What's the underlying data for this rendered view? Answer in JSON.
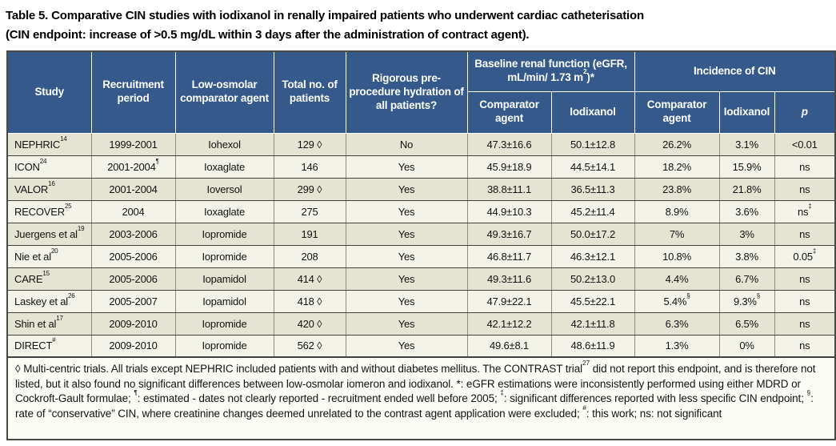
{
  "title": {
    "line1": "Table 5. Comparative CIN studies with iodixanol in renally impaired patients who underwent cardiac catheterisation",
    "line2": "(CIN endpoint: increase of >0.5 mg/dL within 3 days after the administration of contract agent)."
  },
  "colors": {
    "header_blue": "#35598b",
    "row_beige": "#e5e3d2",
    "row_cream": "#f4f3ea",
    "footnote_bg": "#fcfcf6",
    "grid_dark": "#42403c",
    "grid_gray": "#8d8d84"
  },
  "table": {
    "header": {
      "study": "Study",
      "recruitment": "Recruitment period",
      "comparator": "Low-osmolar comparator agent",
      "total": "Total no. of patients",
      "hydration": "Rigorous pre-procedure hydration of all patients?",
      "baseline_group": "Baseline renal function (eGFR, mL/min/ 1.73 m^{2})*",
      "cin_group": "Incidence of CIN",
      "baseline_comparator": "Comparator agent",
      "baseline_iodixanol": "Iodixanol",
      "cin_comparator": "Comparator agent",
      "cin_iodixanol": "Iodixanol",
      "p": "p"
    },
    "rows": [
      [
        "NEPHRIC^{14}",
        "1999-2001",
        "Iohexol",
        "129 ◊",
        "No",
        "47.3±16.6",
        "50.1±12.8",
        "26.2%",
        "3.1%",
        "<0.01"
      ],
      [
        "ICON^{24}",
        "2001-2004^{¶}",
        "Ioxaglate",
        "146",
        "Yes",
        "45.9±18.9",
        "44.5±14.1",
        "18.2%",
        "15.9%",
        "ns"
      ],
      [
        "VALOR^{16}",
        "2001-2004",
        "Ioversol",
        "299 ◊",
        "Yes",
        "38.8±11.1",
        "36.5±11.3",
        "23.8%",
        "21.8%",
        "ns"
      ],
      [
        "RECOVER^{25}",
        "2004",
        "Ioxaglate",
        "275",
        "Yes",
        "44.9±10.3",
        "45.2±11.4",
        "8.9%",
        "3.6%",
        "ns^{‡}"
      ],
      [
        "Juergens et al^{19}",
        "2003-2006",
        "Iopromide",
        "191",
        "Yes",
        "49.3±16.7",
        "50.0±17.2",
        "7%",
        "3%",
        "ns"
      ],
      [
        "Nie et al^{20}",
        "2005-2006",
        "Iopromide",
        "208",
        "Yes",
        "46.8±11.7",
        "46.3±12.1",
        "10.8%",
        "3.8%",
        "0.05^{‡}"
      ],
      [
        "CARE^{15}",
        "2005-2006",
        "Iopamidol",
        "414 ◊",
        "Yes",
        "49.3±11.6",
        "50.2±13.0",
        "4.4%",
        "6.7%",
        "ns"
      ],
      [
        "Laskey et al^{26}",
        "2005-2007",
        "Iopamidol",
        "418 ◊",
        "Yes",
        "47.9±22.1",
        "45.5±22.1",
        "5.4%^{§}",
        "9.3%^{§}",
        "ns"
      ],
      [
        "Shin et al^{17}",
        "2009-2010",
        "Iopromide",
        "420 ◊",
        "Yes",
        "42.1±12.2",
        "42.1±11.8",
        "6.3%",
        "6.5%",
        "ns"
      ],
      [
        "DIRECT^{#}",
        "2009-2010",
        "Iopromide",
        "562 ◊",
        "Yes",
        "49.6±8.1",
        "48.6±11.9",
        "1.3%",
        "0%",
        "ns"
      ]
    ]
  },
  "footnote": "◊ Multi-centric trials. All trials except NEPHRIC included patients with and without diabetes mellitus. The CONTRAST trial^{27} did not report this endpoint, and is therefore not listed, but it also found no significant differences between low-osmolar iomeron and iodixanol. *: eGFR estimations were inconsistently performed using either MDRD or Cockroft-Gault formulae; ^{¶}: estimated - dates not clearly reported - recruitment ended well before 2005; ^{‡}: significant differences reported with less specific CIN endpoint; ^{§}: rate of “conservative” CIN, where creatinine changes deemed unrelated to the contrast agent application were excluded; ^{#}: this work; ns: not significant"
}
